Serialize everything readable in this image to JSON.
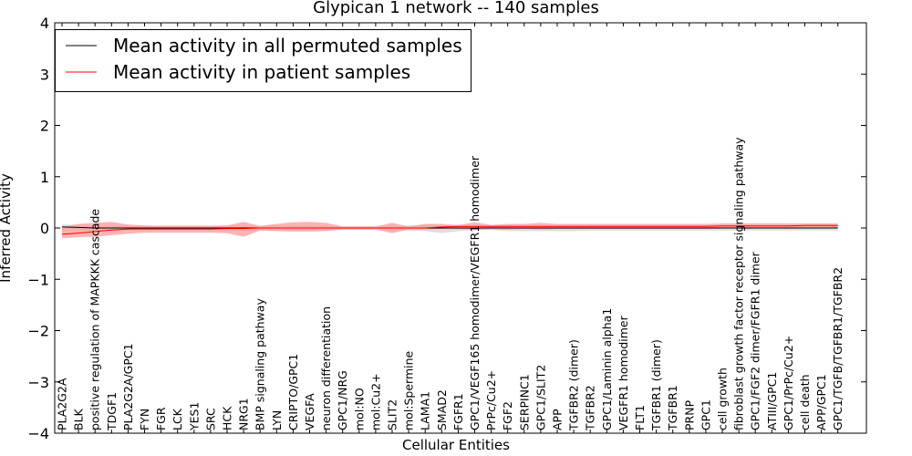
{
  "chart_data": {
    "type": "line",
    "title": "Glypican 1 network -- 140 samples",
    "xlabel": "Cellular Entities",
    "ylabel": "Inferred Activity",
    "ylim": [
      -4,
      4
    ],
    "yticks": [
      -4,
      -3,
      -2,
      -1,
      0,
      1,
      2,
      3,
      4
    ],
    "ytick_labels": [
      "−4",
      "−3",
      "−2",
      "−1",
      "0",
      "1",
      "2",
      "3",
      "4"
    ],
    "legend_position": "top-left",
    "categories": [
      "PLA2G2A",
      "BLK",
      "positive regulation of MAPKKK cascade",
      "TDGF1",
      "PLA2G2A/GPC1",
      "FYN",
      "FGR",
      "LCK",
      "YES1",
      "SRC",
      "HCK",
      "NRG1",
      "BMP signaling pathway",
      "LYN",
      "CRIPTO/GPC1",
      "VEGFA",
      "neuron differentiation",
      "GPC1/NRG",
      "mol:NO",
      "mol:Cu2+",
      "SLIT2",
      "mol:Spermine",
      "LAMA1",
      "SMAD2",
      "FGFR1",
      "GPC1/VEGF165 homodimer/VEGFR1 homodimer",
      "PrPc/Cu2+",
      "FGF2",
      "SERPINC1",
      "GPC1/SLIT2",
      "APP",
      "TGFBR2 (dimer)",
      "TGFBR2",
      "GPC1/Laminin alpha1",
      "VEGFR1 homodimer",
      "FLT1",
      "TGFBR1 (dimer)",
      "TGFBR1",
      "PRNP",
      "GPC1",
      "cell growth",
      "fibroblast growth factor receptor signaling pathway",
      "GPC1/FGF2 dimer/FGFR1 dimer",
      "ATIII/GPC1",
      "GPC1/PrPc/Cu2+",
      "cell death",
      "APP/GPC1",
      "GPC1/TGFB/TGFBR1/TGFBR2"
    ],
    "series": [
      {
        "name": "Mean activity in all permuted samples",
        "color": "#000000",
        "band_color": "#c8c8c8",
        "values": [
          0.02,
          0.01,
          0.0,
          0.0,
          0.0,
          0.0,
          0.0,
          0.0,
          0.0,
          0.0,
          0.0,
          0.0,
          0.0,
          0.0,
          0.0,
          0.0,
          0.0,
          0.0,
          0.0,
          0.0,
          0.0,
          0.0,
          0.0,
          0.0,
          0.0,
          0.0,
          0.0,
          0.0,
          0.0,
          0.0,
          0.0,
          0.0,
          0.0,
          0.0,
          0.0,
          0.0,
          0.0,
          0.0,
          0.0,
          0.0,
          0.0,
          0.0,
          0.0,
          0.0,
          0.0,
          0.0,
          0.0,
          0.0
        ],
        "lower": [
          -0.07,
          -0.06,
          -0.05,
          -0.05,
          -0.05,
          -0.05,
          -0.05,
          -0.05,
          -0.05,
          -0.05,
          -0.05,
          -0.05,
          -0.05,
          -0.05,
          -0.05,
          -0.05,
          -0.05,
          -0.03,
          -0.03,
          -0.03,
          -0.04,
          -0.05,
          -0.06,
          -0.1,
          -0.06,
          -0.04,
          -0.04,
          -0.06,
          -0.06,
          -0.06,
          -0.06,
          -0.06,
          -0.05,
          -0.05,
          -0.05,
          -0.05,
          -0.05,
          -0.05,
          -0.05,
          -0.05,
          -0.05,
          -0.05,
          -0.05,
          -0.05,
          -0.05,
          -0.05,
          -0.05,
          -0.05
        ],
        "upper": [
          0.07,
          0.06,
          0.05,
          0.05,
          0.05,
          0.05,
          0.05,
          0.05,
          0.05,
          0.05,
          0.05,
          0.05,
          0.05,
          0.05,
          0.05,
          0.05,
          0.05,
          0.03,
          0.03,
          0.03,
          0.04,
          0.05,
          0.06,
          0.06,
          0.05,
          0.04,
          0.04,
          0.05,
          0.05,
          0.05,
          0.05,
          0.05,
          0.05,
          0.05,
          0.05,
          0.05,
          0.05,
          0.05,
          0.05,
          0.05,
          0.05,
          0.05,
          0.05,
          0.05,
          0.05,
          0.05,
          0.05,
          0.05
        ]
      },
      {
        "name": "Mean activity in patient samples",
        "color": "#ff0000",
        "band_color": "#ff9a9a",
        "values": [
          -0.12,
          -0.1,
          -0.07,
          -0.04,
          -0.02,
          -0.02,
          -0.02,
          -0.02,
          -0.02,
          -0.02,
          -0.01,
          -0.01,
          0.0,
          0.0,
          0.0,
          0.0,
          0.0,
          0.0,
          0.0,
          0.0,
          0.0,
          0.0,
          0.0,
          0.02,
          0.03,
          0.03,
          0.03,
          0.03,
          0.03,
          0.03,
          0.03,
          0.03,
          0.03,
          0.03,
          0.03,
          0.03,
          0.03,
          0.03,
          0.03,
          0.03,
          0.04,
          0.04,
          0.04,
          0.04,
          0.04,
          0.05,
          0.05,
          0.05
        ],
        "lower": [
          -0.2,
          -0.18,
          -0.17,
          -0.14,
          -0.11,
          -0.09,
          -0.09,
          -0.09,
          -0.09,
          -0.09,
          -0.1,
          -0.17,
          -0.05,
          -0.06,
          -0.07,
          -0.07,
          -0.06,
          -0.03,
          -0.03,
          -0.03,
          -0.1,
          -0.03,
          -0.03,
          -0.02,
          -0.02,
          -0.04,
          -0.02,
          -0.03,
          -0.02,
          -0.03,
          -0.02,
          -0.02,
          -0.02,
          -0.02,
          -0.02,
          -0.02,
          -0.02,
          -0.02,
          -0.02,
          -0.02,
          -0.01,
          -0.01,
          -0.01,
          -0.01,
          -0.01,
          0.0,
          0.0,
          0.0
        ],
        "upper": [
          0.02,
          0.08,
          0.1,
          0.12,
          0.07,
          0.05,
          0.04,
          0.04,
          0.04,
          0.04,
          0.05,
          0.12,
          0.04,
          0.08,
          0.11,
          0.12,
          0.1,
          0.03,
          0.03,
          0.03,
          0.1,
          0.03,
          0.08,
          0.08,
          0.06,
          0.11,
          0.06,
          0.08,
          0.08,
          0.1,
          0.08,
          0.08,
          0.08,
          0.08,
          0.08,
          0.08,
          0.08,
          0.08,
          0.08,
          0.08,
          0.09,
          0.09,
          0.09,
          0.09,
          0.09,
          0.09,
          0.09,
          0.09
        ]
      }
    ]
  }
}
